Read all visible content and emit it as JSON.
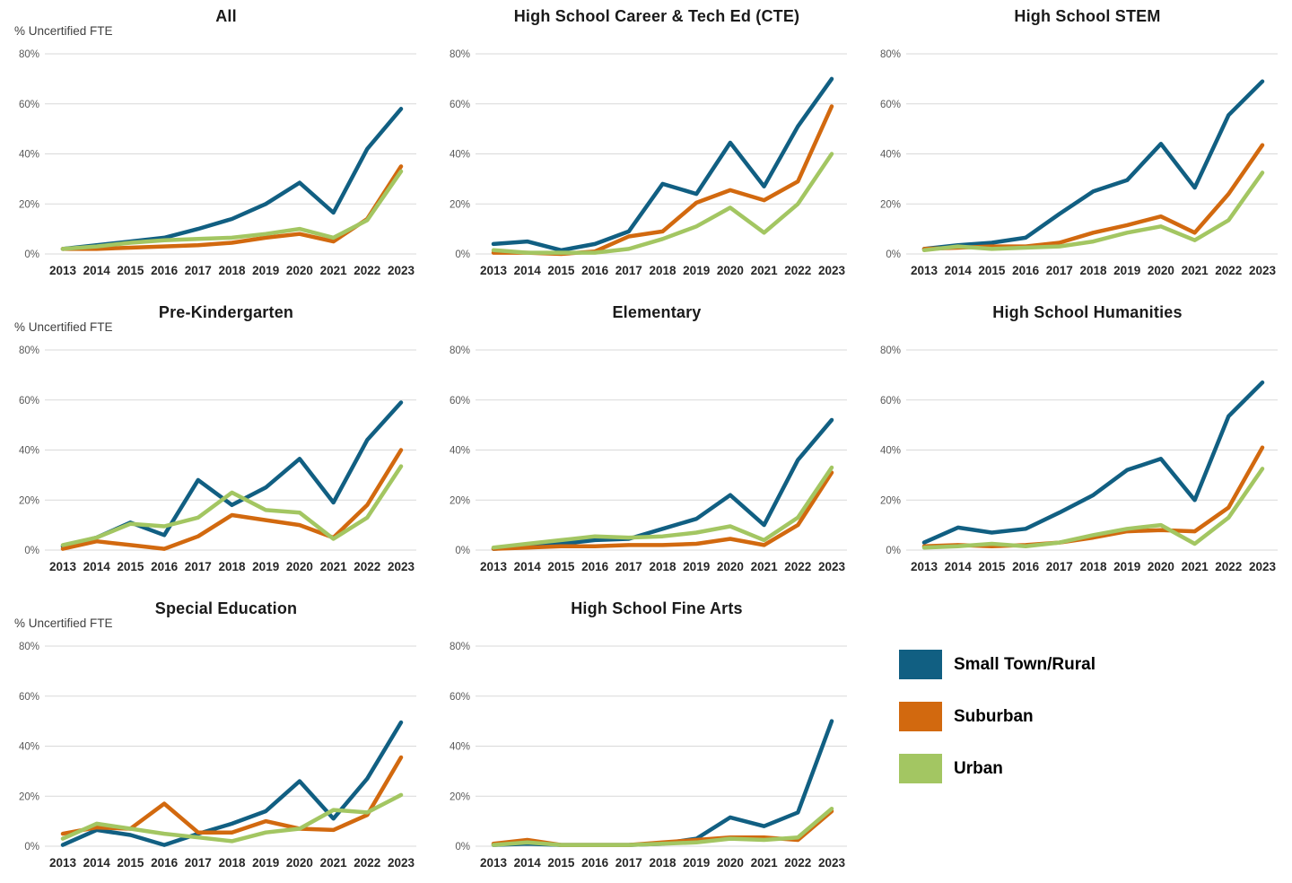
{
  "axis": {
    "y_label": "% Uncertified FTE",
    "yticks_pct": [
      0,
      20,
      40,
      60,
      80
    ],
    "ylim": [
      0,
      80
    ],
    "grid": true
  },
  "colors": {
    "small_town_rural": "#115F82",
    "suburban": "#D2690F",
    "urban": "#A3C662",
    "gridline": "#D9D9D9",
    "tick_label": "#595959",
    "year_label": "#262626",
    "axis_title": "#3F3F3F"
  },
  "legend": {
    "items": [
      {
        "label": "Small Town/Rural",
        "color": "#115F82"
      },
      {
        "label": "Suburban",
        "color": "#D2690F"
      },
      {
        "label": "Urban",
        "color": "#A3C662"
      }
    ]
  },
  "chart_data": [
    {
      "type": "line",
      "title": "All",
      "show_ylabel": true,
      "ylabel": "% Uncertified FTE",
      "ylim": [
        0,
        80
      ],
      "x": [
        2013,
        2014,
        2015,
        2016,
        2017,
        2018,
        2019,
        2020,
        2021,
        2022,
        2023
      ],
      "series": [
        {
          "name": "Small Town/Rural",
          "values": [
            2,
            3.5,
            5,
            6.5,
            10,
            14,
            20,
            28.5,
            16.5,
            42,
            58
          ]
        },
        {
          "name": "Suburban",
          "values": [
            2,
            2,
            2.5,
            3,
            3.5,
            4.5,
            6.5,
            8,
            5,
            14,
            35
          ]
        },
        {
          "name": "Urban",
          "values": [
            2,
            3,
            4.5,
            5.5,
            6,
            6.5,
            8,
            10,
            6.5,
            13.5,
            33
          ]
        }
      ]
    },
    {
      "type": "line",
      "title": "High School Career & Tech Ed (CTE)",
      "show_ylabel": false,
      "ylim": [
        0,
        80
      ],
      "x": [
        2013,
        2014,
        2015,
        2016,
        2017,
        2018,
        2019,
        2020,
        2021,
        2022,
        2023
      ],
      "series": [
        {
          "name": "Small Town/Rural",
          "values": [
            4,
            5,
            1.5,
            4,
            9,
            28,
            24,
            44.5,
            27,
            51,
            70
          ]
        },
        {
          "name": "Suburban",
          "values": [
            0.5,
            0.5,
            0,
            1,
            7,
            9,
            20.5,
            25.5,
            21.5,
            29,
            59
          ]
        },
        {
          "name": "Urban",
          "values": [
            1.5,
            0.5,
            0.5,
            0.5,
            2,
            6,
            11,
            18.5,
            8.5,
            20,
            40
          ]
        }
      ]
    },
    {
      "type": "line",
      "title": "High School STEM",
      "show_ylabel": false,
      "ylim": [
        0,
        80
      ],
      "x": [
        2013,
        2014,
        2015,
        2016,
        2017,
        2018,
        2019,
        2020,
        2021,
        2022,
        2023
      ],
      "series": [
        {
          "name": "Small Town/Rural",
          "values": [
            2,
            3.5,
            4.5,
            6.5,
            16,
            25,
            29.5,
            44,
            26.5,
            55.5,
            69
          ]
        },
        {
          "name": "Suburban",
          "values": [
            2,
            2.5,
            3,
            3,
            4.5,
            8.5,
            11.5,
            15,
            8.5,
            24,
            43.5
          ]
        },
        {
          "name": "Urban",
          "values": [
            1.5,
            3,
            2,
            2.5,
            3,
            5,
            8.5,
            11,
            5.5,
            13.5,
            32.5
          ]
        }
      ]
    },
    {
      "type": "line",
      "title": "Pre-Kindergarten",
      "show_ylabel": true,
      "ylabel": "% Uncertified FTE",
      "ylim": [
        0,
        80
      ],
      "x": [
        2013,
        2014,
        2015,
        2016,
        2017,
        2018,
        2019,
        2020,
        2021,
        2022,
        2023
      ],
      "series": [
        {
          "name": "Small Town/Rural",
          "values": [
            1.5,
            5,
            11,
            6,
            28,
            18,
            25,
            36.5,
            19,
            44,
            59
          ]
        },
        {
          "name": "Suburban",
          "values": [
            0.5,
            3.5,
            2,
            0.5,
            5.5,
            14,
            12,
            10,
            5,
            18,
            40
          ]
        },
        {
          "name": "Urban",
          "values": [
            2,
            5,
            10.5,
            9.5,
            13,
            23,
            16,
            15,
            4.5,
            13,
            33.5
          ]
        }
      ]
    },
    {
      "type": "line",
      "title": "Elementary",
      "show_ylabel": false,
      "ylim": [
        0,
        80
      ],
      "x": [
        2013,
        2014,
        2015,
        2016,
        2017,
        2018,
        2019,
        2020,
        2021,
        2022,
        2023
      ],
      "series": [
        {
          "name": "Small Town/Rural",
          "values": [
            0.5,
            1.5,
            2.5,
            4,
            4.5,
            8.5,
            12.5,
            22,
            10,
            36,
            52
          ]
        },
        {
          "name": "Suburban",
          "values": [
            0.5,
            1,
            1.5,
            1.5,
            2,
            2,
            2.5,
            4.5,
            2,
            10,
            31
          ]
        },
        {
          "name": "Urban",
          "values": [
            1,
            2.5,
            4,
            5.5,
            5,
            5.5,
            7,
            9.5,
            4,
            13,
            33
          ]
        }
      ]
    },
    {
      "type": "line",
      "title": "High School Humanities",
      "show_ylabel": false,
      "ylim": [
        0,
        80
      ],
      "x": [
        2013,
        2014,
        2015,
        2016,
        2017,
        2018,
        2019,
        2020,
        2021,
        2022,
        2023
      ],
      "series": [
        {
          "name": "Small Town/Rural",
          "values": [
            3,
            9,
            7,
            8.5,
            15,
            22,
            32,
            36.5,
            20,
            53.5,
            67
          ]
        },
        {
          "name": "Suburban",
          "values": [
            1.5,
            2,
            1.5,
            2,
            3,
            5,
            7.5,
            8,
            7.5,
            17,
            41
          ]
        },
        {
          "name": "Urban",
          "values": [
            1,
            1.5,
            2.5,
            1.5,
            3,
            6,
            8.5,
            10,
            2.5,
            13,
            32.5
          ]
        }
      ]
    },
    {
      "type": "line",
      "title": "Special Education",
      "show_ylabel": true,
      "ylabel": "% Uncertified FTE",
      "ylim": [
        0,
        80
      ],
      "x": [
        2013,
        2014,
        2015,
        2016,
        2017,
        2018,
        2019,
        2020,
        2021,
        2022,
        2023
      ],
      "series": [
        {
          "name": "Small Town/Rural",
          "values": [
            0.5,
            6.5,
            4.5,
            0.5,
            5,
            9,
            14,
            26,
            11,
            27,
            49.5
          ]
        },
        {
          "name": "Suburban",
          "values": [
            5,
            7.5,
            7,
            17,
            5.5,
            5.5,
            10,
            7,
            6.5,
            12.5,
            35.5
          ]
        },
        {
          "name": "Urban",
          "values": [
            3,
            9,
            7,
            5,
            3.5,
            2,
            5.5,
            7,
            14.5,
            13.5,
            20.5
          ]
        }
      ]
    },
    {
      "type": "line",
      "title": "High School Fine Arts",
      "show_ylabel": false,
      "ylim": [
        0,
        80
      ],
      "x": [
        2013,
        2014,
        2015,
        2016,
        2017,
        2018,
        2019,
        2020,
        2021,
        2022,
        2023
      ],
      "series": [
        {
          "name": "Small Town/Rural",
          "values": [
            0.5,
            1,
            0.5,
            0.5,
            0.5,
            1,
            3,
            11.5,
            8,
            13.5,
            50
          ]
        },
        {
          "name": "Suburban",
          "values": [
            1,
            2.5,
            0.5,
            0.5,
            0.5,
            1.5,
            2.5,
            3.5,
            3.5,
            2.5,
            14
          ]
        },
        {
          "name": "Urban",
          "values": [
            0.5,
            1.5,
            0.5,
            0.5,
            0.5,
            1,
            1.5,
            3,
            2.5,
            3.5,
            15
          ]
        }
      ]
    }
  ]
}
